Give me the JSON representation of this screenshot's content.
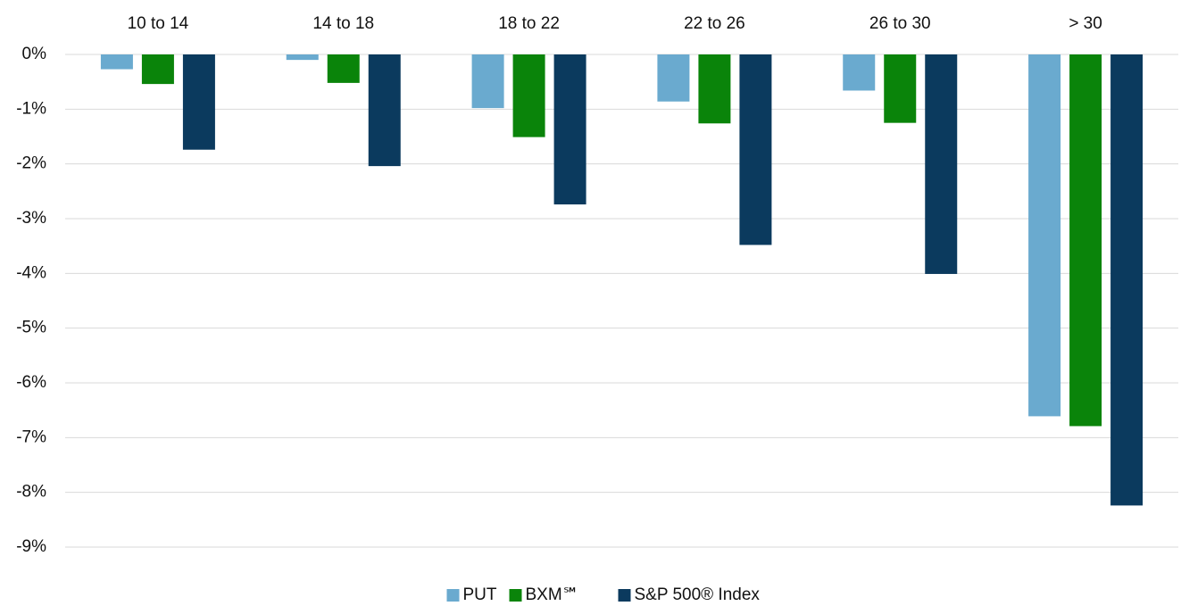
{
  "chart_data": {
    "type": "bar",
    "categories": [
      "10 to 14",
      "14 to 18",
      "18 to 22",
      "22 to 26",
      "26 to 30",
      "> 30"
    ],
    "series": [
      {
        "name": "PUT",
        "color": "#6aaacf",
        "values": [
          -0.27,
          -0.1,
          -0.98,
          -0.86,
          -0.66,
          -6.61
        ]
      },
      {
        "name": "BXM℠",
        "color": "#0a840a",
        "values": [
          -0.54,
          -0.52,
          -1.51,
          -1.26,
          -1.25,
          -6.79
        ]
      },
      {
        "name": "S&P 500® Index",
        "color": "#0b3a5e",
        "values": [
          -1.74,
          -2.04,
          -2.74,
          -3.48,
          -4.01,
          -8.24
        ]
      }
    ],
    "ylim": [
      -9,
      0
    ],
    "yticks": [
      {
        "value": 0,
        "label": "0%"
      },
      {
        "value": -1,
        "label": "-1%"
      },
      {
        "value": -2,
        "label": "-2%"
      },
      {
        "value": -3,
        "label": "-3%"
      },
      {
        "value": -4,
        "label": "-4%"
      },
      {
        "value": -5,
        "label": "-5%"
      },
      {
        "value": -6,
        "label": "-6%"
      },
      {
        "value": -7,
        "label": "-7%"
      },
      {
        "value": -8,
        "label": "-8%"
      },
      {
        "value": -9,
        "label": "-9%"
      }
    ],
    "grid": true,
    "legend": "bottom"
  }
}
